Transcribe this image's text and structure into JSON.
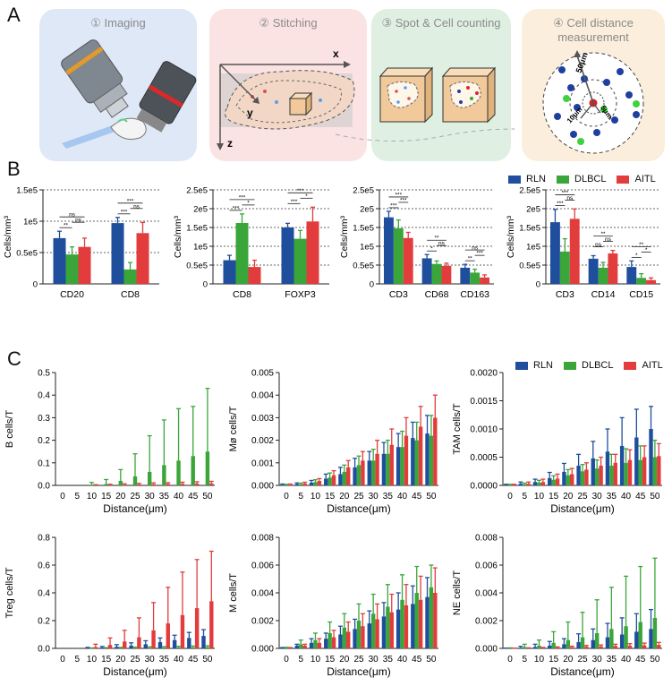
{
  "panels": {
    "a": "A",
    "b": "B",
    "c": "C"
  },
  "workflow": [
    {
      "title": "① Imaging",
      "bg": "#dfe8f7"
    },
    {
      "title": "② Stitching",
      "bg": "#fbe3e3"
    },
    {
      "title": "③ Spot & Cell counting",
      "bg": "#dff0e3"
    },
    {
      "title": "④ Cell distance measurement",
      "bg": "#fbeedc"
    }
  ],
  "stitch_axes": {
    "x": "x",
    "y": "y",
    "z": "z"
  },
  "distance_labels": {
    "outer": "50μm",
    "mid": "10μm",
    "inner": "5μm"
  },
  "legend": [
    {
      "name": "RLN",
      "color": "#1f4e9d"
    },
    {
      "name": "DLBCL",
      "color": "#3aa63a"
    },
    {
      "name": "AITL",
      "color": "#e23c3c"
    }
  ],
  "chart_data": [
    {
      "type": "bar",
      "panel": "B1",
      "ylabel": "Cells/mm³",
      "yticks": [
        "0",
        "0.5e5",
        "1e5",
        "1.5e5"
      ],
      "ylim": [
        0,
        150000
      ],
      "categories": [
        "CD20",
        "CD8"
      ],
      "series": [
        {
          "name": "RLN",
          "values": [
            73000,
            97000
          ],
          "errors": [
            11000,
            9000
          ]
        },
        {
          "name": "DLBCL",
          "values": [
            47000,
            23000
          ],
          "errors": [
            12000,
            11000
          ]
        },
        {
          "name": "AITL",
          "values": [
            59000,
            81000
          ],
          "errors": [
            14000,
            17000
          ]
        }
      ],
      "sig": [
        [
          "**",
          "ns",
          "ns"
        ],
        [
          "***",
          "ns",
          "***"
        ]
      ]
    },
    {
      "type": "bar",
      "panel": "B2",
      "ylabel": "Cells/mm³",
      "yticks": [
        "0",
        "0.5e5",
        "1e5",
        "1.5e5",
        "2e5",
        "2.5e5"
      ],
      "ylim": [
        0,
        250000
      ],
      "categories": [
        "CD8",
        "FOXP3"
      ],
      "series": [
        {
          "name": "RLN",
          "values": [
            63000,
            150000
          ],
          "errors": [
            13000,
            11000
          ]
        },
        {
          "name": "DLBCL",
          "values": [
            162000,
            120000
          ],
          "errors": [
            24000,
            22000
          ]
        },
        {
          "name": "AITL",
          "values": [
            45000,
            166000
          ],
          "errors": [
            18000,
            38000
          ]
        }
      ],
      "sig": [
        [
          "***",
          "*",
          "***"
        ],
        [
          "***",
          "*",
          "***"
        ]
      ]
    },
    {
      "type": "bar",
      "panel": "B3",
      "ylabel": "Cells/mm³",
      "yticks": [
        "0",
        "0.5e5",
        "1e5",
        "1.5e5",
        "2e5",
        "2.5e5"
      ],
      "ylim": [
        0,
        250000
      ],
      "categories": [
        "CD3",
        "CD68",
        "CD163"
      ],
      "series": [
        {
          "name": "RLN",
          "values": [
            177000,
            68000,
            43000
          ],
          "errors": [
            16000,
            10000,
            9000
          ]
        },
        {
          "name": "DLBCL",
          "values": [
            148000,
            53000,
            30000
          ],
          "errors": [
            22000,
            8000,
            9000
          ]
        },
        {
          "name": "AITL",
          "values": [
            122000,
            48000,
            17000
          ],
          "errors": [
            15000,
            7000,
            7000
          ]
        }
      ],
      "sig": [
        [
          "***",
          "***",
          "***"
        ],
        [
          "*",
          "ns",
          "**"
        ],
        [
          "**",
          "***",
          "ns"
        ]
      ]
    },
    {
      "type": "bar",
      "panel": "B4",
      "ylabel": "Cells/mm³",
      "yticks": [
        "0",
        "0.5e5",
        "1e5",
        "1.5e5",
        "2e5",
        "2.5e5"
      ],
      "ylim": [
        0,
        250000
      ],
      "categories": [
        "CD3",
        "CD14",
        "CD15"
      ],
      "series": [
        {
          "name": "RLN",
          "values": [
            164000,
            67000,
            45000
          ],
          "errors": [
            34000,
            8000,
            16000
          ]
        },
        {
          "name": "DLBCL",
          "values": [
            86000,
            43000,
            16000
          ],
          "errors": [
            34000,
            14000,
            11000
          ]
        },
        {
          "name": "AITL",
          "values": [
            173000,
            81000,
            10000
          ],
          "errors": [
            26000,
            8000,
            6000
          ]
        }
      ],
      "sig": [
        [
          "***",
          "ns",
          "***"
        ],
        [
          "ns",
          "ns",
          "**"
        ],
        [
          "*",
          "*",
          "**"
        ]
      ]
    },
    {
      "type": "bar",
      "panel": "C1",
      "ylabel": "B cells/T",
      "xlabel": "Distance(μm)",
      "categories": [
        "0",
        "5",
        "10",
        "15",
        "20",
        "25",
        "30",
        "35",
        "40",
        "45",
        "50"
      ],
      "yticks": [
        "0.0",
        "0.1",
        "0.2",
        "0.3",
        "0.4",
        "0.5"
      ],
      "ylim": [
        0,
        0.5
      ],
      "series": [
        {
          "name": "RLN",
          "values": [
            0,
            0,
            0,
            0,
            0,
            0,
            0,
            0,
            0,
            0,
            0
          ],
          "errors": [
            0,
            0,
            0,
            0,
            0,
            0,
            0,
            0,
            0,
            0,
            0
          ]
        },
        {
          "name": "DLBCL",
          "values": [
            0,
            0,
            0.003,
            0.006,
            0.02,
            0.04,
            0.06,
            0.09,
            0.11,
            0.13,
            0.15
          ],
          "errors": [
            0,
            0,
            0.01,
            0.02,
            0.05,
            0.1,
            0.16,
            0.2,
            0.23,
            0.22,
            0.28
          ]
        },
        {
          "name": "AITL",
          "values": [
            0,
            0,
            0.001,
            0.002,
            0.003,
            0.004,
            0.005,
            0.006,
            0.007,
            0.008,
            0.009
          ],
          "errors": [
            0,
            0,
            0.002,
            0.003,
            0.004,
            0.005,
            0.006,
            0.006,
            0.007,
            0.008,
            0.009
          ]
        }
      ]
    },
    {
      "type": "bar",
      "panel": "C2",
      "ylabel": "Mø cells/T",
      "xlabel": "Distance(μm)",
      "categories": [
        "0",
        "5",
        "10",
        "15",
        "20",
        "25",
        "30",
        "35",
        "40",
        "45",
        "50"
      ],
      "yticks": [
        "0.000",
        "0.001",
        "0.002",
        "0.003",
        "0.004",
        "0.005"
      ],
      "ylim": [
        0,
        0.005
      ],
      "series": [
        {
          "name": "RLN",
          "values": [
            3e-05,
            6e-05,
            0.00012,
            0.0003,
            0.0005,
            0.0008,
            0.0011,
            0.0014,
            0.0017,
            0.0021,
            0.0023
          ],
          "errors": [
            3e-05,
            5e-05,
            0.0001,
            0.0002,
            0.0003,
            0.0004,
            0.0004,
            0.0005,
            0.0006,
            0.0007,
            0.0008
          ]
        },
        {
          "name": "DLBCL",
          "values": [
            2e-05,
            5e-05,
            0.00015,
            0.00035,
            0.0006,
            0.0009,
            0.0011,
            0.0014,
            0.0017,
            0.002,
            0.0022
          ],
          "errors": [
            3e-05,
            5e-05,
            0.0001,
            0.0002,
            0.0003,
            0.0004,
            0.0005,
            0.0006,
            0.0007,
            0.0008,
            0.0009
          ]
        },
        {
          "name": "AITL",
          "values": [
            3e-05,
            8e-05,
            0.0002,
            0.00045,
            0.0008,
            0.0011,
            0.0014,
            0.0018,
            0.0022,
            0.0026,
            0.003
          ],
          "errors": [
            3e-05,
            6e-05,
            0.0001,
            0.0002,
            0.0003,
            0.0004,
            0.0006,
            0.0007,
            0.0008,
            0.0009,
            0.001
          ]
        }
      ]
    },
    {
      "type": "bar",
      "panel": "C3",
      "ylabel": "TAM cells/T",
      "xlabel": "Distance(μm)",
      "categories": [
        "0",
        "5",
        "10",
        "15",
        "20",
        "25",
        "30",
        "35",
        "40",
        "45",
        "50"
      ],
      "yticks": [
        "0.0000",
        "0.0005",
        "0.0010",
        "0.0015",
        "0.0020"
      ],
      "ylim": [
        0,
        0.002
      ],
      "series": [
        {
          "name": "RLN",
          "values": [
            1e-05,
            3e-05,
            6e-05,
            0.00013,
            0.00024,
            0.00035,
            0.00048,
            0.0006,
            0.0007,
            0.00085,
            0.001
          ],
          "errors": [
            1e-05,
            3e-05,
            5e-05,
            0.0001,
            0.00015,
            0.0002,
            0.0003,
            0.0004,
            0.0005,
            0.0005,
            0.0004
          ]
        },
        {
          "name": "DLBCL",
          "values": [
            1e-05,
            2e-05,
            5e-05,
            0.0001,
            0.00018,
            0.00025,
            0.0003,
            0.00035,
            0.0004,
            0.00045,
            0.0005
          ],
          "errors": [
            1e-05,
            2e-05,
            4e-05,
            7e-05,
            0.0001,
            0.00012,
            0.00015,
            0.0002,
            0.00025,
            0.00025,
            0.0003
          ]
        },
        {
          "name": "AITL",
          "values": [
            1e-05,
            3e-05,
            6e-05,
            0.00012,
            0.0002,
            0.00028,
            0.00035,
            0.0004,
            0.00045,
            0.0005,
            0.00052
          ],
          "errors": [
            1e-05,
            3e-05,
            5e-05,
            8e-05,
            0.0001,
            0.00012,
            0.00015,
            0.00015,
            0.00018,
            0.0002,
            0.00022
          ]
        }
      ]
    },
    {
      "type": "bar",
      "panel": "C4",
      "ylabel": "Treg cells/T",
      "xlabel": "Distance(μm)",
      "categories": [
        "0",
        "5",
        "10",
        "15",
        "20",
        "25",
        "30",
        "35",
        "40",
        "45",
        "50"
      ],
      "yticks": [
        "0.0",
        "0.2",
        "0.4",
        "0.6",
        "0.8"
      ],
      "ylim": [
        0,
        0.8
      ],
      "series": [
        {
          "name": "RLN",
          "values": [
            0,
            0,
            0.003,
            0.006,
            0.012,
            0.02,
            0.03,
            0.045,
            0.06,
            0.075,
            0.09
          ],
          "errors": [
            0,
            0,
            0.004,
            0.008,
            0.015,
            0.02,
            0.025,
            0.03,
            0.035,
            0.04,
            0.045
          ]
        },
        {
          "name": "DLBCL",
          "values": [
            0,
            0,
            0.001,
            0.002,
            0.003,
            0.004,
            0.005,
            0.006,
            0.007,
            0.008,
            0.009
          ],
          "errors": [
            0,
            0,
            0.002,
            0.003,
            0.004,
            0.005,
            0.006,
            0.007,
            0.008,
            0.009,
            0.01
          ]
        },
        {
          "name": "AITL",
          "values": [
            0,
            0,
            0.01,
            0.025,
            0.05,
            0.08,
            0.13,
            0.18,
            0.24,
            0.29,
            0.34
          ],
          "errors": [
            0,
            0,
            0.02,
            0.05,
            0.08,
            0.14,
            0.2,
            0.26,
            0.31,
            0.35,
            0.36
          ]
        }
      ]
    },
    {
      "type": "bar",
      "panel": "C5",
      "ylabel": "M cells/T",
      "xlabel": "Distance(μm)",
      "categories": [
        "0",
        "5",
        "10",
        "15",
        "20",
        "25",
        "30",
        "35",
        "40",
        "45",
        "50"
      ],
      "yticks": [
        "0.000",
        "0.002",
        "0.004",
        "0.006",
        "0.008"
      ],
      "ylim": [
        0,
        0.008
      ],
      "series": [
        {
          "name": "RLN",
          "values": [
            3e-05,
            0.0002,
            0.0004,
            0.0007,
            0.001,
            0.0014,
            0.0018,
            0.0023,
            0.0028,
            0.0032,
            0.0037
          ],
          "errors": [
            3e-05,
            0.0001,
            0.0003,
            0.0004,
            0.0006,
            0.0007,
            0.0009,
            0.001,
            0.0012,
            0.0013,
            0.0014
          ]
        },
        {
          "name": "DLBCL",
          "values": [
            4e-05,
            0.0003,
            0.0006,
            0.0011,
            0.0015,
            0.002,
            0.0025,
            0.003,
            0.0035,
            0.004,
            0.0044
          ],
          "errors": [
            4e-05,
            0.0003,
            0.0005,
            0.0008,
            0.001,
            0.0012,
            0.0014,
            0.0016,
            0.0018,
            0.0019,
            0.0016
          ]
        },
        {
          "name": "AITL",
          "values": [
            3e-05,
            0.0002,
            0.0004,
            0.0008,
            0.0012,
            0.0016,
            0.0021,
            0.0026,
            0.0031,
            0.0035,
            0.004
          ],
          "errors": [
            3e-05,
            0.0001,
            0.0003,
            0.0005,
            0.0007,
            0.0009,
            0.0011,
            0.0013,
            0.0015,
            0.0017,
            0.0018
          ]
        }
      ]
    },
    {
      "type": "bar",
      "panel": "C6",
      "ylabel": "NE cells/T",
      "xlabel": "Distance(μm)",
      "categories": [
        "0",
        "5",
        "10",
        "15",
        "20",
        "25",
        "30",
        "35",
        "40",
        "45",
        "50"
      ],
      "yticks": [
        "0.000",
        "0.002",
        "0.004",
        "0.006",
        "0.008"
      ],
      "ylim": [
        0,
        0.008
      ],
      "series": [
        {
          "name": "RLN",
          "values": [
            1e-05,
            5e-05,
            0.0001,
            0.0002,
            0.0003,
            0.00045,
            0.0006,
            0.0008,
            0.001,
            0.0012,
            0.0014
          ],
          "errors": [
            1e-05,
            0.0001,
            0.0002,
            0.0003,
            0.0004,
            0.0006,
            0.0008,
            0.001,
            0.0012,
            0.0013,
            0.0014
          ]
        },
        {
          "name": "DLBCL",
          "values": [
            2e-05,
            0.0001,
            0.0002,
            0.0004,
            0.0006,
            0.0008,
            0.0011,
            0.0014,
            0.0016,
            0.0019,
            0.0022
          ],
          "errors": [
            2e-05,
            0.0002,
            0.0004,
            0.0008,
            0.0013,
            0.0018,
            0.0024,
            0.003,
            0.0036,
            0.004,
            0.0043
          ]
        },
        {
          "name": "AITL",
          "values": [
            1e-05,
            2e-05,
            4e-05,
            6e-05,
            9e-05,
            0.00012,
            0.00015,
            0.00018,
            0.0002,
            0.00022,
            0.00025
          ],
          "errors": [
            1e-05,
            2e-05,
            3e-05,
            5e-05,
            7e-05,
            9e-05,
            0.0001,
            0.00012,
            0.00014,
            0.00016,
            0.00018
          ]
        }
      ]
    }
  ]
}
